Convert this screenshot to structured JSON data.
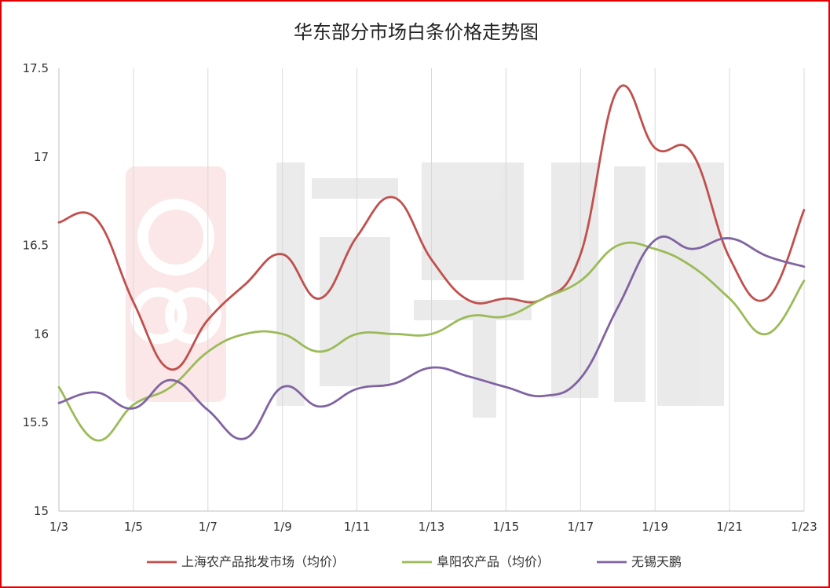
{
  "chart_data": {
    "type": "line",
    "title": "华东部分市场白条价格走势图",
    "xlabel": "",
    "ylabel": "",
    "ylim": [
      15,
      17.5
    ],
    "yticks": [
      "15",
      "15.5",
      "16",
      "16.5",
      "17",
      "17.5"
    ],
    "x": [
      "1/3",
      "1/4",
      "1/5",
      "1/6",
      "1/7",
      "1/8",
      "1/9",
      "1/10",
      "1/11",
      "1/12",
      "1/13",
      "1/14",
      "1/15",
      "1/16",
      "1/17",
      "1/18",
      "1/19",
      "1/20",
      "1/21",
      "1/22",
      "1/23"
    ],
    "xtick_labels": [
      "1/3",
      "1/5",
      "1/7",
      "1/9",
      "1/11",
      "1/13",
      "1/15",
      "1/17",
      "1/19",
      "1/21",
      "1/23"
    ],
    "grid": "vertical",
    "legend": "bottom",
    "series": [
      {
        "name": "上海农产品批发市场（均价）",
        "color": "#c0504d",
        "values": [
          16.63,
          16.65,
          16.18,
          15.8,
          16.08,
          16.28,
          16.45,
          16.2,
          16.55,
          16.77,
          16.42,
          16.19,
          16.2,
          16.2,
          16.45,
          17.38,
          17.05,
          17.02,
          16.43,
          16.2,
          16.7
        ]
      },
      {
        "name": "阜阳农产品（均价）",
        "color": "#9bbb59",
        "values": [
          15.7,
          15.4,
          15.6,
          15.7,
          15.9,
          16.0,
          16.0,
          15.9,
          16.0,
          16.0,
          16.0,
          16.1,
          16.1,
          16.2,
          16.3,
          16.5,
          16.48,
          16.38,
          16.2,
          16.0,
          16.3
        ]
      },
      {
        "name": "无锡天鹏",
        "color": "#8064a2",
        "values": [
          15.61,
          15.67,
          15.58,
          15.74,
          15.57,
          15.41,
          15.7,
          15.59,
          15.69,
          15.72,
          15.81,
          15.76,
          15.7,
          15.65,
          15.75,
          16.15,
          16.53,
          16.48,
          16.54,
          16.44,
          16.38
        ]
      }
    ]
  }
}
